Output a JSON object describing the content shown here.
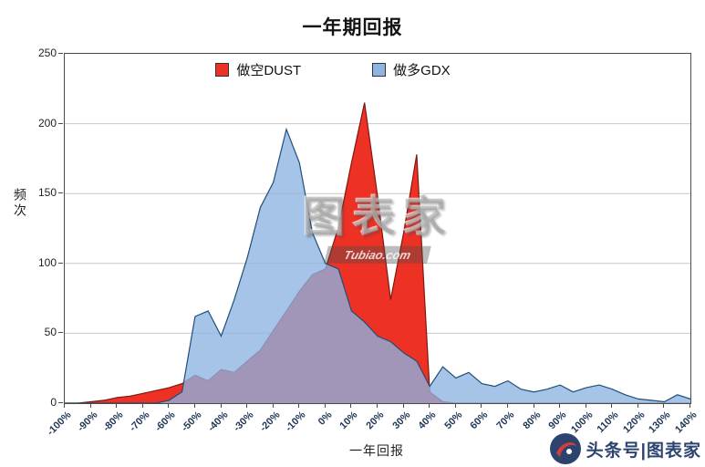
{
  "chart_data": {
    "type": "area",
    "title": "一年期回报",
    "xlabel": "一年回报",
    "ylabel": "频次",
    "ylim": [
      0,
      250
    ],
    "y_ticks": [
      0,
      50,
      100,
      150,
      200,
      250
    ],
    "x_tick_labels": [
      "-100%",
      "-90%",
      "-80%",
      "-70%",
      "-60%",
      "-50%",
      "-40%",
      "-30%",
      "-20%",
      "-10%",
      "0%",
      "10%",
      "20%",
      "30%",
      "40%",
      "50%",
      "60%",
      "70%",
      "80%",
      "90%",
      "100%",
      "110%",
      "120%",
      "130%",
      "140%"
    ],
    "grid": "horizontal",
    "legend_position": "top-center",
    "x": [
      -100,
      -95,
      -90,
      -85,
      -80,
      -75,
      -70,
      -65,
      -60,
      -55,
      -50,
      -45,
      -40,
      -35,
      -30,
      -25,
      -20,
      -15,
      -10,
      -5,
      0,
      5,
      10,
      15,
      20,
      25,
      30,
      35,
      40,
      45,
      50,
      55,
      60,
      65,
      70,
      75,
      80,
      85,
      90,
      95,
      100,
      105,
      110,
      115,
      120,
      125,
      130,
      135,
      140
    ],
    "series": [
      {
        "name": "做空DUST",
        "fill": "#ed3124",
        "stroke": "#801812",
        "fill_opacity": 1,
        "values": [
          0,
          0,
          1,
          2,
          4,
          5,
          7,
          9,
          11,
          14,
          20,
          16,
          24,
          22,
          30,
          38,
          52,
          66,
          80,
          92,
          96,
          126,
          172,
          215,
          148,
          74,
          122,
          178,
          8,
          1,
          0,
          0,
          0,
          0,
          0,
          0,
          0,
          0,
          0,
          0,
          0,
          0,
          0,
          0,
          0,
          0,
          0,
          0,
          0
        ]
      },
      {
        "name": "做多GDX",
        "fill": "#8db4e2",
        "stroke": "#1f4e79",
        "fill_opacity": 0.78,
        "values": [
          0,
          0,
          0,
          0,
          0,
          0,
          0,
          0,
          2,
          8,
          62,
          66,
          48,
          74,
          104,
          140,
          158,
          196,
          172,
          122,
          100,
          96,
          66,
          58,
          48,
          44,
          36,
          30,
          12,
          26,
          18,
          22,
          14,
          12,
          16,
          10,
          8,
          10,
          13,
          8,
          11,
          13,
          10,
          6,
          3,
          2,
          1,
          6,
          3
        ]
      }
    ]
  },
  "watermark": {
    "main": "图表家",
    "sub": "Tubiao.com"
  },
  "brand": {
    "text": "头条号|图表家"
  },
  "colors": {
    "grid": "#c8c8c8",
    "axis": "#4a4a4a"
  }
}
